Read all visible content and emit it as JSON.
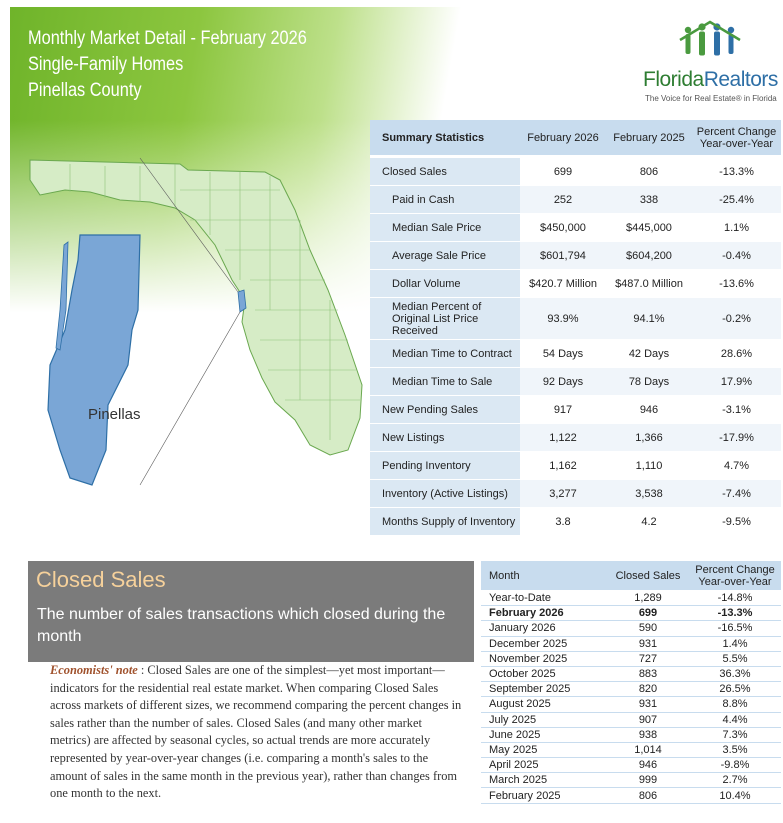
{
  "header": {
    "line1": "Monthly Market Detail - February 2026",
    "line2": "Single-Family Homes",
    "line3": "Pinellas County"
  },
  "logo": {
    "name_part1": "Florida",
    "name_part2": "Realtors",
    "tagline": "The Voice for Real Estate® in Florida",
    "colors": {
      "green": "#2e7d32",
      "blue": "#2e6fa6"
    }
  },
  "map": {
    "county_label": "Pinellas"
  },
  "summary": {
    "headers": [
      "Summary Statistics",
      "February 2026",
      "February 2025",
      "Percent Change Year-over-Year"
    ],
    "rows": [
      {
        "label": "Closed Sales",
        "cur": "699",
        "prev": "806",
        "pct": "-13.3%",
        "sub": false
      },
      {
        "label": "Paid in Cash",
        "cur": "252",
        "prev": "338",
        "pct": "-25.4%",
        "sub": true
      },
      {
        "label": "Median Sale Price",
        "cur": "$450,000",
        "prev": "$445,000",
        "pct": "1.1%",
        "sub": true
      },
      {
        "label": "Average Sale Price",
        "cur": "$601,794",
        "prev": "$604,200",
        "pct": "-0.4%",
        "sub": true
      },
      {
        "label": "Dollar Volume",
        "cur": "$420.7 Million",
        "prev": "$487.0 Million",
        "pct": "-13.6%",
        "sub": true
      },
      {
        "label": "Median Percent of Original List Price Received",
        "cur": "93.9%",
        "prev": "94.1%",
        "pct": "-0.2%",
        "sub": true
      },
      {
        "label": "Median Time to Contract",
        "cur": "54 Days",
        "prev": "42 Days",
        "pct": "28.6%",
        "sub": true
      },
      {
        "label": "Median Time to Sale",
        "cur": "92 Days",
        "prev": "78 Days",
        "pct": "17.9%",
        "sub": true
      },
      {
        "label": "New Pending Sales",
        "cur": "917",
        "prev": "946",
        "pct": "-3.1%",
        "sub": false
      },
      {
        "label": "New Listings",
        "cur": "1,122",
        "prev": "1,366",
        "pct": "-17.9%",
        "sub": false
      },
      {
        "label": "Pending Inventory",
        "cur": "1,162",
        "prev": "1,110",
        "pct": "4.7%",
        "sub": false
      },
      {
        "label": "Inventory (Active Listings)",
        "cur": "3,277",
        "prev": "3,538",
        "pct": "-7.4%",
        "sub": false
      },
      {
        "label": "Months Supply of Inventory",
        "cur": "3.8",
        "prev": "4.2",
        "pct": "-9.5%",
        "sub": false
      }
    ]
  },
  "closed_sales": {
    "title": "Closed Sales",
    "subtitle": "The number of sales transactions which closed during the month",
    "note_lead": "Economists' note",
    "note_body": " :  Closed Sales are one of the simplest—yet most important—indicators for the residential real estate market.  When comparing Closed Sales across markets of different sizes, we recommend comparing the percent changes in sales rather than the number of sales.  Closed Sales (and many other market metrics) are affected by seasonal cycles, so actual trends are more accurately represented by year-over-year changes (i.e. comparing a month's sales to the amount of sales in the same month in the previous year), rather than changes from one month to the next."
  },
  "monthly": {
    "headers": [
      "Month",
      "Closed Sales",
      "Percent Change Year-over-Year"
    ],
    "rows": [
      {
        "month": "Year-to-Date",
        "sales": "1,289",
        "pct": "-14.8%",
        "current": false
      },
      {
        "month": "February 2026",
        "sales": "699",
        "pct": "-13.3%",
        "current": true
      },
      {
        "month": "January 2026",
        "sales": "590",
        "pct": "-16.5%",
        "current": false
      },
      {
        "month": "December 2025",
        "sales": "931",
        "pct": "1.4%",
        "current": false
      },
      {
        "month": "November 2025",
        "sales": "727",
        "pct": "5.5%",
        "current": false
      },
      {
        "month": "October 2025",
        "sales": "883",
        "pct": "36.3%",
        "current": false
      },
      {
        "month": "September 2025",
        "sales": "820",
        "pct": "26.5%",
        "current": false
      },
      {
        "month": "August 2025",
        "sales": "931",
        "pct": "8.8%",
        "current": false
      },
      {
        "month": "July 2025",
        "sales": "907",
        "pct": "4.4%",
        "current": false
      },
      {
        "month": "June 2025",
        "sales": "938",
        "pct": "7.3%",
        "current": false
      },
      {
        "month": "May 2025",
        "sales": "1,014",
        "pct": "3.5%",
        "current": false
      },
      {
        "month": "April 2025",
        "sales": "946",
        "pct": "-9.8%",
        "current": false
      },
      {
        "month": "March 2025",
        "sales": "999",
        "pct": "2.7%",
        "current": false
      },
      {
        "month": "February 2025",
        "sales": "806",
        "pct": "10.4%",
        "current": false
      }
    ]
  }
}
